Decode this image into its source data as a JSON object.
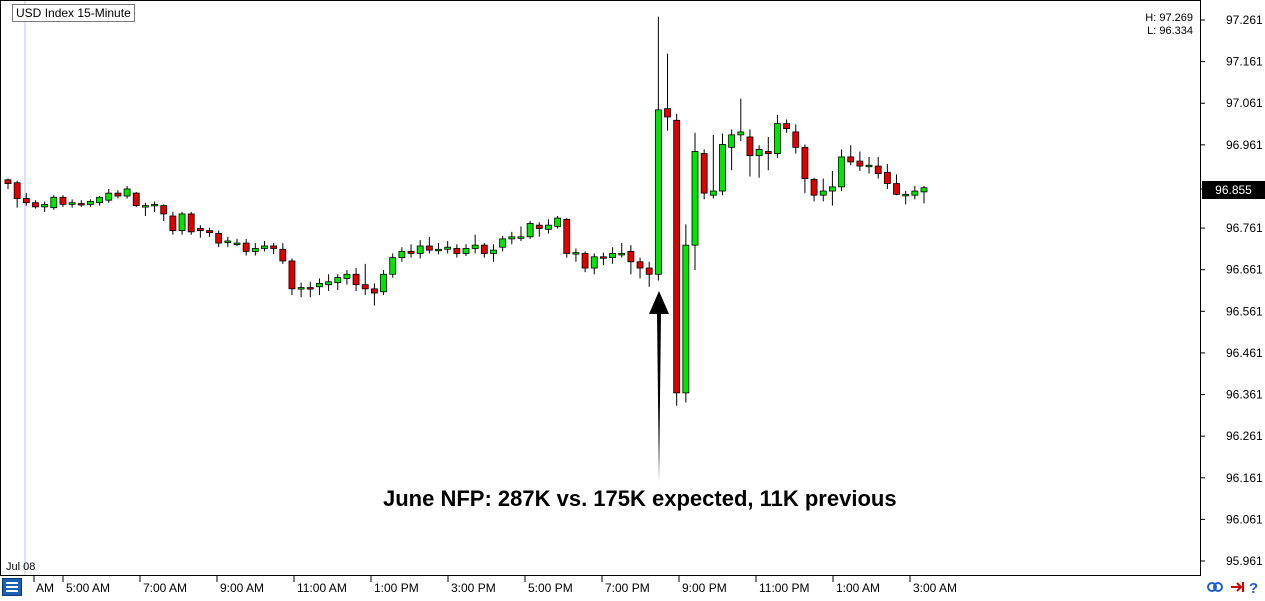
{
  "header": {
    "symbol": "USD",
    "title": "Index 15-Minute",
    "high": "H: 97.269",
    "low": "L: 96.334"
  },
  "current_price": "96.855",
  "date_label": "Jul 08",
  "annotation": "June NFP: 287K vs. 175K expected, 11K previous",
  "colors": {
    "up": "#00e600",
    "down": "#e00000",
    "outline": "#000000"
  },
  "icons": [
    "menu-icon",
    "link-icon",
    "arrow-right-icon",
    "help-icon"
  ],
  "chart_data": {
    "type": "candlestick",
    "ylim": [
      95.961,
      97.261
    ],
    "y_ticks": [
      "97.261",
      "97.161",
      "97.061",
      "96.961",
      "96.855",
      "96.761",
      "96.661",
      "96.561",
      "96.461",
      "96.361",
      "96.261",
      "96.161",
      "96.061",
      "95.961"
    ],
    "x_ticks": [
      "AM",
      "5:00 AM",
      "7:00 AM",
      "9:00 AM",
      "11:00 AM",
      "1:00 PM",
      "3:00 PM",
      "5:00 PM",
      "7:00 PM",
      "9:00 PM",
      "11:00 PM",
      "1:00 AM",
      "3:00 AM"
    ],
    "candles": [
      {
        "o": 96.877,
        "h": 96.88,
        "l": 96.855,
        "c": 96.868
      },
      {
        "o": 96.87,
        "h": 96.875,
        "l": 96.81,
        "c": 96.832
      },
      {
        "o": 96.832,
        "h": 96.845,
        "l": 96.815,
        "c": 96.822
      },
      {
        "o": 96.822,
        "h": 96.828,
        "l": 96.808,
        "c": 96.812
      },
      {
        "o": 96.812,
        "h": 96.825,
        "l": 96.8,
        "c": 96.818
      },
      {
        "o": 96.81,
        "h": 96.84,
        "l": 96.805,
        "c": 96.835
      },
      {
        "o": 96.835,
        "h": 96.84,
        "l": 96.812,
        "c": 96.818
      },
      {
        "o": 96.818,
        "h": 96.83,
        "l": 96.81,
        "c": 96.822
      },
      {
        "o": 96.82,
        "h": 96.828,
        "l": 96.812,
        "c": 96.818
      },
      {
        "o": 96.818,
        "h": 96.83,
        "l": 96.812,
        "c": 96.825
      },
      {
        "o": 96.822,
        "h": 96.838,
        "l": 96.815,
        "c": 96.835
      },
      {
        "o": 96.828,
        "h": 96.855,
        "l": 96.822,
        "c": 96.845
      },
      {
        "o": 96.845,
        "h": 96.852,
        "l": 96.832,
        "c": 96.838
      },
      {
        "o": 96.838,
        "h": 96.862,
        "l": 96.832,
        "c": 96.855
      },
      {
        "o": 96.845,
        "h": 96.848,
        "l": 96.812,
        "c": 96.815
      },
      {
        "o": 96.815,
        "h": 96.822,
        "l": 96.79,
        "c": 96.815
      },
      {
        "o": 96.815,
        "h": 96.825,
        "l": 96.8,
        "c": 96.818
      },
      {
        "o": 96.815,
        "h": 96.818,
        "l": 96.778,
        "c": 96.795
      },
      {
        "o": 96.79,
        "h": 96.8,
        "l": 96.745,
        "c": 96.755
      },
      {
        "o": 96.755,
        "h": 96.8,
        "l": 96.745,
        "c": 96.795
      },
      {
        "o": 96.795,
        "h": 96.8,
        "l": 96.745,
        "c": 96.752
      },
      {
        "o": 96.76,
        "h": 96.768,
        "l": 96.738,
        "c": 96.755
      },
      {
        "o": 96.755,
        "h": 96.762,
        "l": 96.74,
        "c": 96.75
      },
      {
        "o": 96.748,
        "h": 96.755,
        "l": 96.715,
        "c": 96.725
      },
      {
        "o": 96.728,
        "h": 96.74,
        "l": 96.715,
        "c": 96.73
      },
      {
        "o": 96.725,
        "h": 96.735,
        "l": 96.718,
        "c": 96.725
      },
      {
        "o": 96.725,
        "h": 96.735,
        "l": 96.695,
        "c": 96.705
      },
      {
        "o": 96.705,
        "h": 96.725,
        "l": 96.695,
        "c": 96.712
      },
      {
        "o": 96.712,
        "h": 96.73,
        "l": 96.705,
        "c": 96.718
      },
      {
        "o": 96.718,
        "h": 96.725,
        "l": 96.698,
        "c": 96.712
      },
      {
        "o": 96.71,
        "h": 96.725,
        "l": 96.675,
        "c": 96.682
      },
      {
        "o": 96.682,
        "h": 96.688,
        "l": 96.6,
        "c": 96.615
      },
      {
        "o": 96.615,
        "h": 96.63,
        "l": 96.595,
        "c": 96.618
      },
      {
        "o": 96.618,
        "h": 96.632,
        "l": 96.595,
        "c": 96.615
      },
      {
        "o": 96.62,
        "h": 96.64,
        "l": 96.6,
        "c": 96.628
      },
      {
        "o": 96.625,
        "h": 96.65,
        "l": 96.61,
        "c": 96.632
      },
      {
        "o": 96.63,
        "h": 96.65,
        "l": 96.612,
        "c": 96.642
      },
      {
        "o": 96.64,
        "h": 96.66,
        "l": 96.625,
        "c": 96.65
      },
      {
        "o": 96.65,
        "h": 96.665,
        "l": 96.61,
        "c": 96.625
      },
      {
        "o": 96.625,
        "h": 96.675,
        "l": 96.6,
        "c": 96.615
      },
      {
        "o": 96.615,
        "h": 96.628,
        "l": 96.575,
        "c": 96.605
      },
      {
        "o": 96.608,
        "h": 96.66,
        "l": 96.6,
        "c": 96.65
      },
      {
        "o": 96.65,
        "h": 96.7,
        "l": 96.642,
        "c": 96.69
      },
      {
        "o": 96.69,
        "h": 96.715,
        "l": 96.68,
        "c": 96.705
      },
      {
        "o": 96.705,
        "h": 96.722,
        "l": 96.69,
        "c": 96.7
      },
      {
        "o": 96.7,
        "h": 96.732,
        "l": 96.688,
        "c": 96.718
      },
      {
        "o": 96.718,
        "h": 96.74,
        "l": 96.7,
        "c": 96.708
      },
      {
        "o": 96.708,
        "h": 96.725,
        "l": 96.698,
        "c": 96.71
      },
      {
        "o": 96.71,
        "h": 96.73,
        "l": 96.7,
        "c": 96.715
      },
      {
        "o": 96.712,
        "h": 96.722,
        "l": 96.69,
        "c": 96.7
      },
      {
        "o": 96.7,
        "h": 96.722,
        "l": 96.694,
        "c": 96.712
      },
      {
        "o": 96.712,
        "h": 96.745,
        "l": 96.7,
        "c": 96.72
      },
      {
        "o": 96.72,
        "h": 96.725,
        "l": 96.69,
        "c": 96.7
      },
      {
        "o": 96.7,
        "h": 96.722,
        "l": 96.68,
        "c": 96.708
      },
      {
        "o": 96.715,
        "h": 96.742,
        "l": 96.705,
        "c": 96.735
      },
      {
        "o": 96.735,
        "h": 96.752,
        "l": 96.722,
        "c": 96.74
      },
      {
        "o": 96.74,
        "h": 96.765,
        "l": 96.73,
        "c": 96.74
      },
      {
        "o": 96.74,
        "h": 96.778,
        "l": 96.735,
        "c": 96.772
      },
      {
        "o": 96.768,
        "h": 96.775,
        "l": 96.74,
        "c": 96.76
      },
      {
        "o": 96.758,
        "h": 96.782,
        "l": 96.748,
        "c": 96.768
      },
      {
        "o": 96.765,
        "h": 96.79,
        "l": 96.76,
        "c": 96.785
      },
      {
        "o": 96.782,
        "h": 96.785,
        "l": 96.69,
        "c": 96.7
      },
      {
        "o": 96.7,
        "h": 96.712,
        "l": 96.68,
        "c": 96.702
      },
      {
        "o": 96.7,
        "h": 96.705,
        "l": 96.655,
        "c": 96.665
      },
      {
        "o": 96.665,
        "h": 96.7,
        "l": 96.65,
        "c": 96.692
      },
      {
        "o": 96.692,
        "h": 96.702,
        "l": 96.672,
        "c": 96.69
      },
      {
        "o": 96.69,
        "h": 96.715,
        "l": 96.675,
        "c": 96.7
      },
      {
        "o": 96.698,
        "h": 96.725,
        "l": 96.69,
        "c": 96.7
      },
      {
        "o": 96.705,
        "h": 96.72,
        "l": 96.65,
        "c": 96.68
      },
      {
        "o": 96.68,
        "h": 96.69,
        "l": 96.64,
        "c": 96.665
      },
      {
        "o": 96.665,
        "h": 96.68,
        "l": 96.62,
        "c": 96.65
      },
      {
        "o": 96.65,
        "h": 97.269,
        "l": 96.635,
        "c": 97.045
      },
      {
        "o": 97.048,
        "h": 97.18,
        "l": 96.995,
        "c": 97.028
      },
      {
        "o": 97.02,
        "h": 97.035,
        "l": 96.334,
        "c": 96.365
      },
      {
        "o": 96.365,
        "h": 96.77,
        "l": 96.342,
        "c": 96.72
      },
      {
        "o": 96.72,
        "h": 96.99,
        "l": 96.66,
        "c": 96.945
      },
      {
        "o": 96.94,
        "h": 96.95,
        "l": 96.83,
        "c": 96.845
      },
      {
        "o": 96.84,
        "h": 96.985,
        "l": 96.832,
        "c": 96.85
      },
      {
        "o": 96.85,
        "h": 96.988,
        "l": 96.84,
        "c": 96.962
      },
      {
        "o": 96.955,
        "h": 96.998,
        "l": 96.9,
        "c": 96.985
      },
      {
        "o": 96.985,
        "h": 97.072,
        "l": 96.97,
        "c": 96.992
      },
      {
        "o": 96.98,
        "h": 96.998,
        "l": 96.885,
        "c": 96.935
      },
      {
        "o": 96.935,
        "h": 96.96,
        "l": 96.882,
        "c": 96.95
      },
      {
        "o": 96.945,
        "h": 96.98,
        "l": 96.9,
        "c": 96.94
      },
      {
        "o": 96.94,
        "h": 97.033,
        "l": 96.93,
        "c": 97.012
      },
      {
        "o": 97.012,
        "h": 97.022,
        "l": 96.99,
        "c": 97.0
      },
      {
        "o": 96.992,
        "h": 97.01,
        "l": 96.94,
        "c": 96.955
      },
      {
        "o": 96.955,
        "h": 96.962,
        "l": 96.845,
        "c": 96.88
      },
      {
        "o": 96.878,
        "h": 96.882,
        "l": 96.825,
        "c": 96.84
      },
      {
        "o": 96.84,
        "h": 96.88,
        "l": 96.825,
        "c": 96.85
      },
      {
        "o": 96.85,
        "h": 96.898,
        "l": 96.815,
        "c": 96.86
      },
      {
        "o": 96.86,
        "h": 96.95,
        "l": 96.85,
        "c": 96.932
      },
      {
        "o": 96.932,
        "h": 96.96,
        "l": 96.912,
        "c": 96.92
      },
      {
        "o": 96.922,
        "h": 96.945,
        "l": 96.898,
        "c": 96.91
      },
      {
        "o": 96.91,
        "h": 96.932,
        "l": 96.892,
        "c": 96.912
      },
      {
        "o": 96.91,
        "h": 96.932,
        "l": 96.88,
        "c": 96.892
      },
      {
        "o": 96.895,
        "h": 96.915,
        "l": 96.855,
        "c": 96.868
      },
      {
        "o": 96.868,
        "h": 96.89,
        "l": 96.84,
        "c": 96.842
      },
      {
        "o": 96.842,
        "h": 96.85,
        "l": 96.818,
        "c": 96.842
      },
      {
        "o": 96.84,
        "h": 96.862,
        "l": 96.83,
        "c": 96.85
      },
      {
        "o": 96.848,
        "h": 96.862,
        "l": 96.82,
        "c": 96.858
      }
    ]
  }
}
